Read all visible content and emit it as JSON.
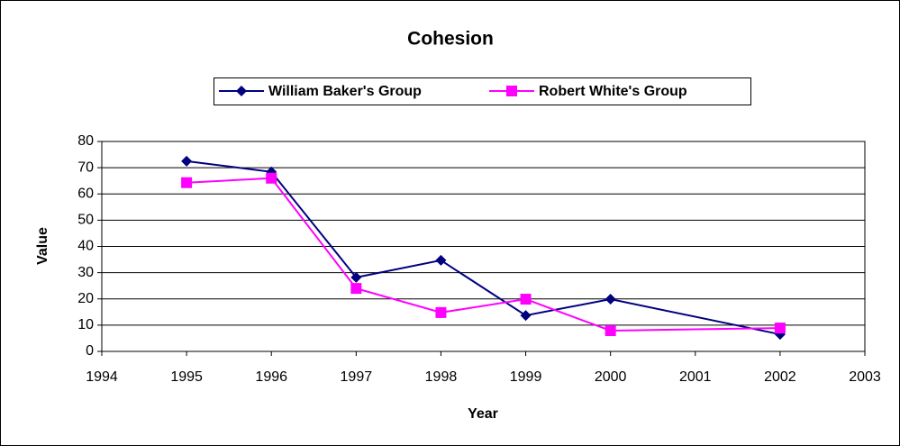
{
  "chart_data": {
    "type": "line",
    "title": "Cohesion",
    "x_label": "Year",
    "y_label": "Value",
    "x": [
      1995,
      1996,
      1997,
      1998,
      1999,
      2000,
      2002
    ],
    "series": [
      {
        "name": "William Baker's Group",
        "color": "#000080",
        "marker": "diamond",
        "values": [
          72.5,
          68.4,
          28.2,
          34.7,
          13.7,
          19.9,
          6.5
        ]
      },
      {
        "name": "Robert White's Group",
        "color": "#ff00ff",
        "marker": "square",
        "values": [
          64.3,
          66,
          24,
          14.8,
          19.9,
          7.9,
          8.9
        ]
      }
    ],
    "xlim": [
      1994,
      2003
    ],
    "xticks": [
      1994,
      1995,
      1996,
      1997,
      1998,
      1999,
      2000,
      2001,
      2002,
      2003
    ],
    "ylim": [
      0,
      80
    ],
    "yticks": [
      0,
      10,
      20,
      30,
      40,
      50,
      60,
      70,
      80
    ],
    "grid": true,
    "legend": "top"
  }
}
